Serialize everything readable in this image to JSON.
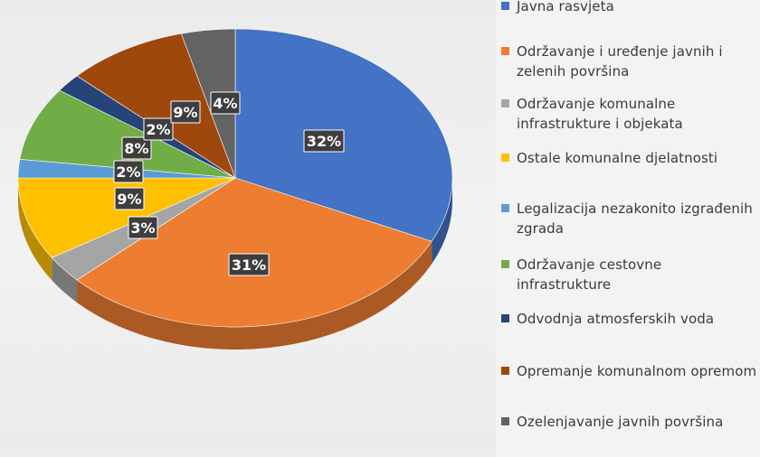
{
  "chart_data": {
    "type": "pie",
    "title": "",
    "legend_position": "right",
    "slices": [
      {
        "label": "Javna rasvjeta",
        "value": 32,
        "value_label": "32%",
        "color": "#4472c4"
      },
      {
        "label": "Održavanje i uređenje javnih i zelenih površina",
        "value": 31,
        "value_label": "31%",
        "color": "#ed7d31"
      },
      {
        "label": "Održavanje komunalne infrastrukture i objekata",
        "value": 3,
        "value_label": "3%",
        "color": "#a5a5a5"
      },
      {
        "label": "Ostale komunalne djelatnosti",
        "value": 9,
        "value_label": "9%",
        "color": "#ffc000"
      },
      {
        "label": "Legalizacija nezakonito izgrađenih zgrada",
        "value": 2,
        "value_label": "2%",
        "color": "#5b9bd5"
      },
      {
        "label": "Održavanje cestovne infrastrukture",
        "value": 8,
        "value_label": "8%",
        "color": "#70ad47"
      },
      {
        "label": "Odvodnja atmosferskih voda",
        "value": 2,
        "value_label": "2%",
        "color": "#264478"
      },
      {
        "label": "Opremanje komunalnom opremom",
        "value": 9,
        "value_label": "9%",
        "color": "#9e480e"
      },
      {
        "label": "Ozelenjavanje javnih površina",
        "value": 4,
        "value_label": "4%",
        "color": "#636363"
      }
    ]
  }
}
